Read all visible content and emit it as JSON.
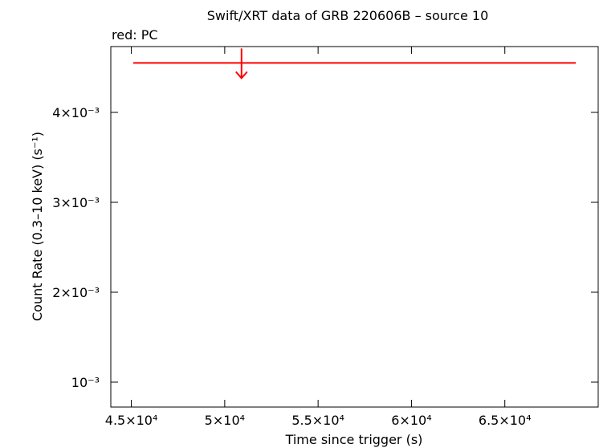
{
  "chart_data": {
    "type": "upper_limit",
    "title": "Swift/XRT data of GRB 220606B – source 10",
    "subtitle": "red: PC",
    "x_label": "Time since trigger (s)",
    "y_label": "Count Rate (0.3–10 keV) (s⁻¹)",
    "xlim": [
      43900,
      70000
    ],
    "ylim": [
      0.000723,
      0.004732
    ],
    "xticks": [
      {
        "value": 45000,
        "label": "4.5×10⁴"
      },
      {
        "value": 50000,
        "label": "5×10⁴"
      },
      {
        "value": 55000,
        "label": "5.5×10⁴"
      },
      {
        "value": 60000,
        "label": "6×10⁴"
      },
      {
        "value": 65000,
        "label": "6.5×10⁴"
      }
    ],
    "yticks": [
      {
        "value": 0.001,
        "label": "10⁻³"
      },
      {
        "value": 0.002,
        "label": "2×10⁻³"
      },
      {
        "value": 0.003,
        "label": "3×10⁻³"
      },
      {
        "value": 0.004,
        "label": "4×10⁻³"
      }
    ],
    "series": [
      {
        "color": "#ff0000",
        "x": [
          50900
        ],
        "x_low": [
          45100
        ],
        "x_high": [
          68800
        ],
        "values": [
          0.00455
        ]
      }
    ]
  }
}
